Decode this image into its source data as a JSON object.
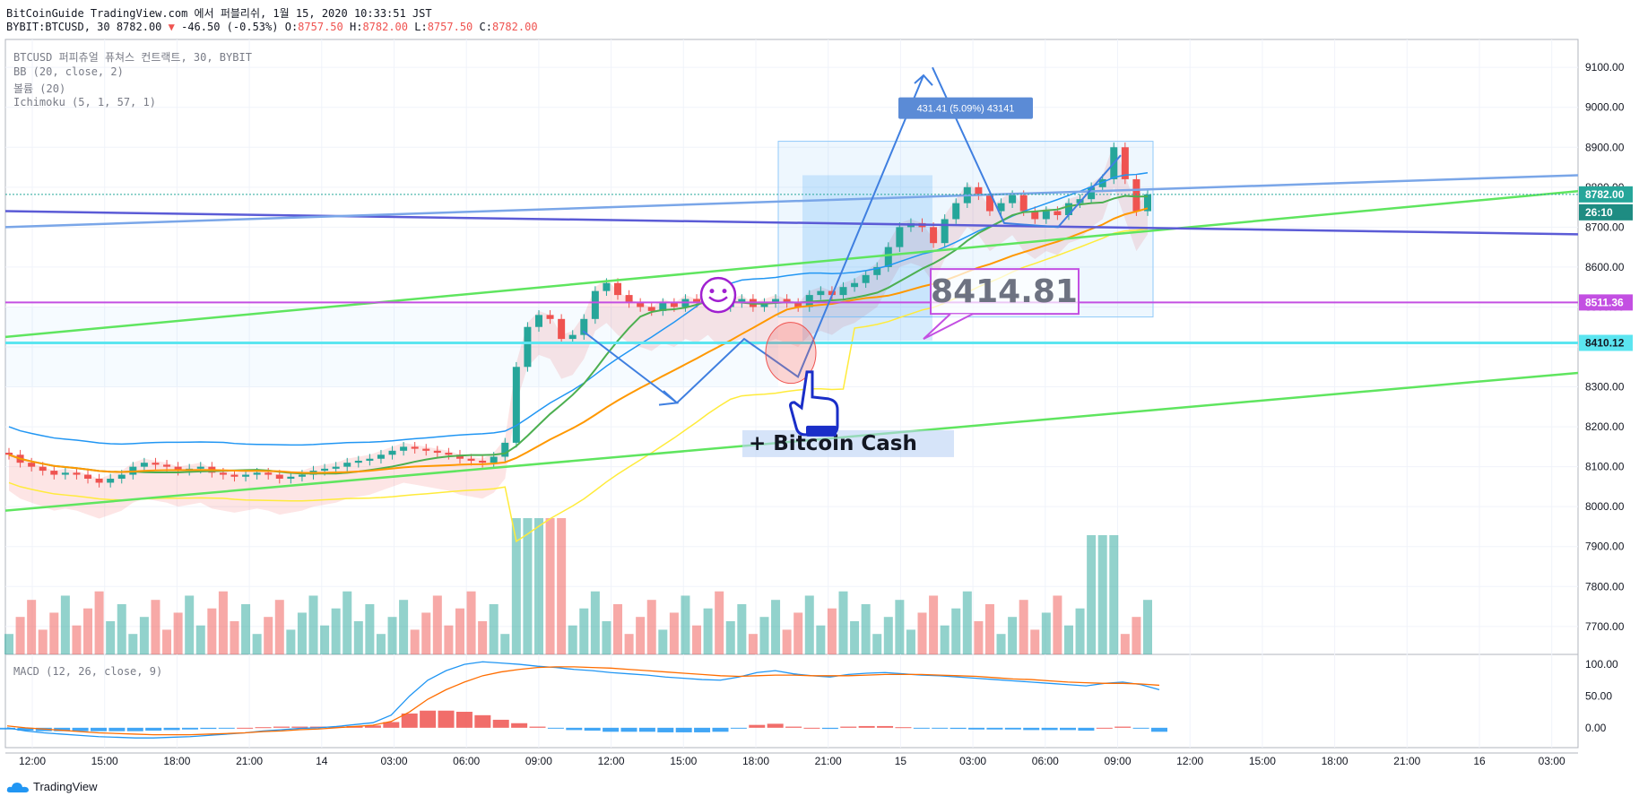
{
  "header": {
    "line1": "BitCoinGuide TradingView.com 에서 퍼블리쉬, 1월 15, 2020 10:33:51 JST",
    "symbol": "BYBIT:BTCUSD, 30",
    "last": "8782.00",
    "change": "-46.50 (-0.53%)",
    "o_label": "O:",
    "o_value": "8757.50",
    "h_label": "H:",
    "h_value": "8782.00",
    "l_label": "L:",
    "l_value": "8757.50",
    "c_label": "C:",
    "c_value": "8782.00"
  },
  "legend": {
    "line1": "BTCUSD 퍼피츄얼 퓨쳐스 컨트랙트, 30, BYBIT",
    "line2": "BB (20, close, 2)",
    "line3": "볼륨 (20)",
    "line4": "Ichimoku (5, 1, 57, 1)",
    "macd": "MACD (12, 26, close, 9)"
  },
  "brand": "TradingView",
  "annotations": {
    "measure": "431.41 (5.09%) 43141",
    "big_price": "8414.81",
    "note": "+ Bitcoin Cash",
    "smile": "☺"
  },
  "price_labels": {
    "last": "8782.00",
    "countdown": "26:10",
    "purple_line": "8511.36",
    "cyan_line": "8410.12"
  },
  "colors": {
    "up": "#26a69a",
    "down": "#ef5350",
    "bb": "#2196f3",
    "yellow": "#ffeb3b",
    "green_ma": "#4caf50",
    "orange_ma": "#ff9800",
    "trend_green": "#5fe55f",
    "trend_blue": "#5b5bd6",
    "trend_lightblue": "#7aa6e8",
    "purple": "#c34fe2",
    "cyan": "#5be5f0",
    "macd": "#2196f3",
    "signal": "#ff6d00"
  },
  "chart_data": [
    {
      "type": "candlestick",
      "title": "BTCUSD 퍼피츄얼 퓨쳐스 컨트랙트, 30, BYBIT",
      "y_ticks": [
        "9100.00",
        "9000.00",
        "8900.00",
        "8800.00",
        "8700.00",
        "8600.00",
        "8500.00",
        "8400.00",
        "8300.00",
        "8200.00",
        "8100.00",
        "8000.00",
        "7900.00",
        "7800.00",
        "7700.00"
      ],
      "ylim": [
        7630,
        9170
      ],
      "x_ticks": [
        "12:00",
        "15:00",
        "18:00",
        "21:00",
        "14",
        "03:00",
        "06:00",
        "09:00",
        "12:00",
        "15:00",
        "18:00",
        "21:00",
        "15",
        "03:00",
        "06:00",
        "09:00",
        "12:00",
        "15:00",
        "18:00",
        "21:00",
        "16",
        "03:00"
      ],
      "closes": [
        8130,
        8110,
        8100,
        8090,
        8080,
        8085,
        8080,
        8070,
        8060,
        8070,
        8080,
        8100,
        8110,
        8105,
        8100,
        8090,
        8095,
        8100,
        8085,
        8080,
        8075,
        8080,
        8085,
        8080,
        8070,
        8075,
        8080,
        8090,
        8095,
        8100,
        8110,
        8115,
        8120,
        8130,
        8140,
        8150,
        8145,
        8140,
        8135,
        8130,
        8120,
        8115,
        8110,
        8125,
        8160,
        8350,
        8450,
        8480,
        8470,
        8420,
        8430,
        8470,
        8540,
        8560,
        8530,
        8510,
        8500,
        8490,
        8510,
        8500,
        8520,
        8510,
        8530,
        8500,
        8510,
        8520,
        8500,
        8510,
        8520,
        8510,
        8500,
        8530,
        8540,
        8530,
        8550,
        8560,
        8580,
        8600,
        8650,
        8700,
        8710,
        8700,
        8660,
        8720,
        8760,
        8800,
        8780,
        8740,
        8760,
        8780,
        8740,
        8720,
        8740,
        8730,
        8760,
        8770,
        8800,
        8820,
        8900,
        8820,
        8740,
        8782
      ],
      "volume_ticks": [],
      "volume_note": "volume histogram under price (20)",
      "levels": {
        "purple": 8511.36,
        "cyan": 8410.12,
        "last": 8782.0
      }
    },
    {
      "type": "line",
      "title": "MACD (12, 26, close, 9)",
      "y_ticks": [
        "100.00",
        "50.00",
        "0.00"
      ],
      "ylim": [
        -20,
        110
      ],
      "series": [
        {
          "name": "MACD",
          "values": [
            0,
            -5,
            -8,
            -10,
            -12,
            -14,
            -15,
            -16,
            -16,
            -15,
            -14,
            -12,
            -10,
            -8,
            -5,
            -3,
            -1,
            0,
            2,
            5,
            8,
            20,
            50,
            75,
            90,
            100,
            104,
            102,
            100,
            97,
            95,
            92,
            90,
            87,
            85,
            83,
            80,
            78,
            76,
            75,
            80,
            87,
            90,
            85,
            82,
            80,
            84,
            86,
            87,
            85,
            83,
            82,
            80,
            78,
            76,
            74,
            72,
            70,
            68,
            66,
            70,
            72,
            68,
            60
          ]
        },
        {
          "name": "Signal",
          "values": [
            3,
            0,
            -2,
            -4,
            -6,
            -8,
            -9,
            -10,
            -11,
            -11,
            -11,
            -10,
            -9,
            -8,
            -6,
            -5,
            -3,
            -2,
            0,
            2,
            4,
            10,
            25,
            45,
            60,
            72,
            82,
            88,
            92,
            95,
            96,
            96,
            95,
            94,
            92,
            90,
            88,
            86,
            84,
            82,
            81,
            82,
            83,
            83,
            82,
            82,
            82,
            83,
            84,
            84,
            84,
            83,
            82,
            81,
            79,
            77,
            76,
            74,
            72,
            71,
            70,
            70,
            69,
            67
          ]
        }
      ]
    }
  ]
}
